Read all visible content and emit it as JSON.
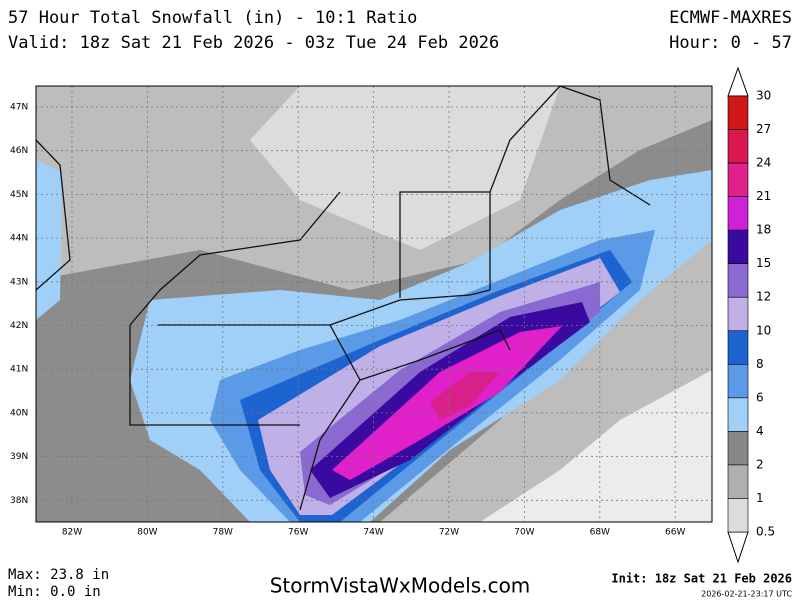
{
  "header": {
    "title": "57 Hour Total Snowfall (in) - 10:1 Ratio",
    "valid": "Valid: 18z Sat 21 Feb 2026 - 03z Tue 24 Feb 2026",
    "model": "ECMWF-MAXRES",
    "hours": "Hour: 0 - 57"
  },
  "map": {
    "lat_labels": [
      "47N",
      "46N",
      "45N",
      "44N",
      "43N",
      "42N",
      "41N",
      "40N",
      "39N",
      "38N"
    ],
    "lon_labels": [
      "82W",
      "80W",
      "78W",
      "76W",
      "74W",
      "72W",
      "70W",
      "68W",
      "66W"
    ]
  },
  "legend": {
    "labels": [
      "30",
      "27",
      "24",
      "21",
      "18",
      "15",
      "12",
      "10",
      "8",
      "6",
      "4",
      "2",
      "1",
      "0.5"
    ],
    "colors": [
      "#d01818",
      "#d8184e",
      "#e0208c",
      "#d020d8",
      "#3a0aa0",
      "#8a6ad0",
      "#c0b0e8",
      "#1e64d0",
      "#5a9ae6",
      "#a0d0f8",
      "#888888",
      "#b0b0b0",
      "#dcdcdc"
    ]
  },
  "footer": {
    "max": "Max: 23.8 in",
    "min": "Min: 0.0 in",
    "site": "StormVistaWxModels.com",
    "init": "Init: 18z Sat 21 Feb 2026",
    "timestamp": "2026-02-21-23:17 UTC"
  }
}
